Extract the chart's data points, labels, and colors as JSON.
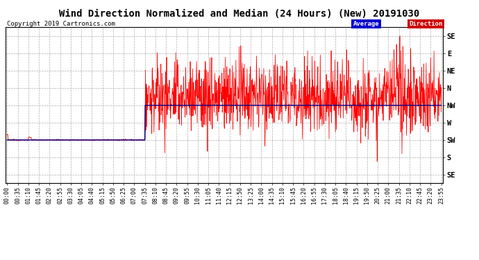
{
  "title": "Wind Direction Normalized and Median (24 Hours) (New) 20191030",
  "copyright": "Copyright 2019 Cartronics.com",
  "background_color": "#ffffff",
  "plot_bg_color": "#ffffff",
  "ytick_labels_right": [
    "SE",
    "E",
    "NE",
    "N",
    "NW",
    "W",
    "SW",
    "S",
    "SE"
  ],
  "ytick_values": [
    8,
    7,
    6,
    5,
    4,
    3,
    2,
    1,
    0
  ],
  "direction_color": "#ff0000",
  "average_color": "#00008b",
  "legend_avg_bg": "#0000cc",
  "legend_dir_bg": "#cc0000",
  "legend_avg_text": "Average",
  "legend_dir_text": "Direction",
  "grid_color": "#999999",
  "title_fontsize": 10,
  "copyright_fontsize": 6.5,
  "axis_fontsize": 7.5,
  "xtick_interval_minutes": 35,
  "total_minutes": 1436,
  "switch_minute": 456,
  "avg_before": 2.0,
  "avg_after": 4.0
}
